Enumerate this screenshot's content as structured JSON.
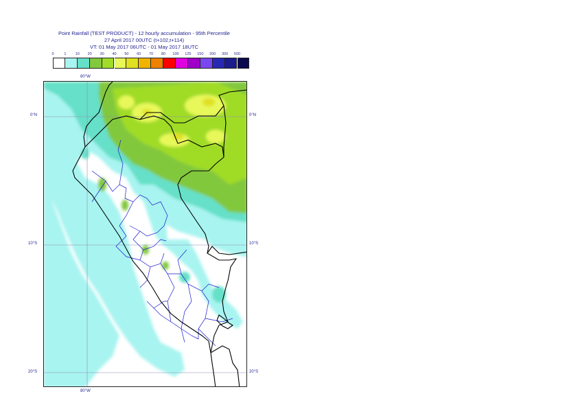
{
  "header": {
    "title": "Point Rainfall (TEST PRODUCT) - 12 hourly accumulation - 95th Percentile",
    "base_time": "27 April 2017 00UTC (t+102,t+114)",
    "valid_time": "VT: 01 May 2017 06UTC - 01 May 2017 18UTC"
  },
  "legend": {
    "thresholds": [
      "0",
      "1",
      "10",
      "20",
      "30",
      "40",
      "50",
      "60",
      "70",
      "80",
      "100",
      "125",
      "150",
      "200",
      "300",
      "500"
    ],
    "colors": [
      "#ffffff",
      "#a8f4f0",
      "#66e0c8",
      "#82c83c",
      "#a0dc28",
      "#e8f85a",
      "#e0e020",
      "#f0b400",
      "#f08000",
      "#ff0000",
      "#e000e0",
      "#a000c8",
      "#7a46f0",
      "#2828b4",
      "#1c1c8c",
      "#0a0a50"
    ]
  },
  "map": {
    "region": "Peru",
    "lon_labels_top": [
      "80°W"
    ],
    "lon_labels_bottom": [
      "80°W"
    ],
    "lat_labels_left": [
      "0°N",
      "10°S",
      "20°S"
    ],
    "lat_labels_right": [
      "0°N",
      "10°S",
      "20°S"
    ],
    "ocean_color": "#ffffff",
    "land_base_color": "#ffffff",
    "coast_color": "#000000",
    "admin_color": "#1a1ad0",
    "grid_color": "#8c8cb4"
  }
}
